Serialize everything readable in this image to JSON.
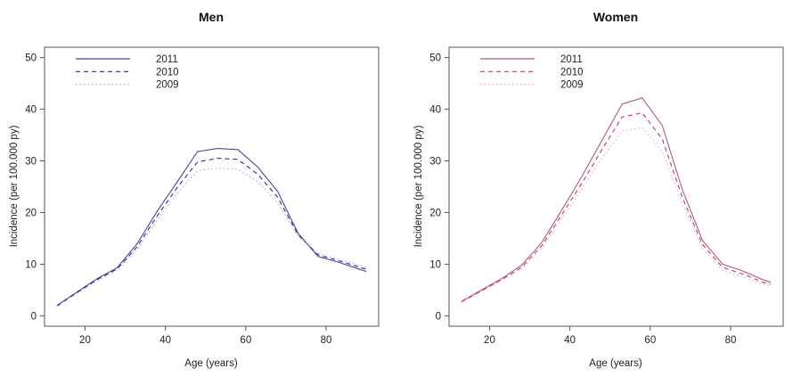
{
  "figure": {
    "background": "#ffffff"
  },
  "chart_data": [
    {
      "type": "line",
      "title": "Men",
      "xlabel": "Age (years)",
      "ylabel": "Incidence (per 100.000 py)",
      "xlim": [
        13,
        90
      ],
      "ylim": [
        0,
        50
      ],
      "x_ticks": [
        20,
        40,
        60,
        80
      ],
      "y_ticks": [
        0,
        10,
        20,
        30,
        40,
        50
      ],
      "grid": false,
      "legend_position": "top-left",
      "x": [
        13,
        18,
        23,
        28,
        33,
        38,
        43,
        48,
        53,
        58,
        63,
        68,
        73,
        78,
        83,
        88,
        90
      ],
      "series": [
        {
          "name": "2011",
          "linestyle": "solid",
          "color": "#45459d",
          "values": [
            2.0,
            4.6,
            7.2,
            9.3,
            14.0,
            20.3,
            26.0,
            31.8,
            32.4,
            32.2,
            28.8,
            24.0,
            16.0,
            11.5,
            10.4,
            9.1,
            8.6
          ]
        },
        {
          "name": "2010",
          "linestyle": "dashed",
          "color": "#2a2aa4",
          "values": [
            1.9,
            4.5,
            7.0,
            9.1,
            13.4,
            19.4,
            24.9,
            29.8,
            30.5,
            30.3,
            27.4,
            22.9,
            15.7,
            11.8,
            10.7,
            9.5,
            9.0
          ]
        },
        {
          "name": "2009",
          "linestyle": "dotted",
          "color": "#a8a8da",
          "values": [
            1.85,
            4.35,
            6.8,
            8.9,
            12.9,
            18.6,
            23.8,
            28.1,
            28.6,
            28.4,
            26.0,
            21.8,
            15.5,
            12.1,
            11.0,
            9.9,
            9.4
          ]
        }
      ]
    },
    {
      "type": "line",
      "title": "Women",
      "xlabel": "Age (years)",
      "ylabel": "Incidence (per 100.000 py)",
      "xlim": [
        13,
        90
      ],
      "ylim": [
        0,
        50
      ],
      "x_ticks": [
        20,
        40,
        60,
        80
      ],
      "y_ticks": [
        0,
        10,
        20,
        30,
        40,
        50
      ],
      "grid": false,
      "legend_position": "top-left",
      "x": [
        13,
        18,
        23,
        28,
        33,
        38,
        43,
        48,
        53,
        58,
        63,
        68,
        73,
        78,
        83,
        88,
        90
      ],
      "series": [
        {
          "name": "2011",
          "linestyle": "solid",
          "color": "#b25c7c",
          "values": [
            2.8,
            5.0,
            7.2,
            9.8,
            14.2,
            20.5,
            27.0,
            34.0,
            41.0,
            42.2,
            36.8,
            24.4,
            14.6,
            10.0,
            8.7,
            7.0,
            6.5
          ]
        },
        {
          "name": "2010",
          "linestyle": "dashed",
          "color": "#c23a62",
          "values": [
            2.7,
            4.85,
            7.0,
            9.4,
            13.6,
            19.6,
            25.7,
            32.2,
            38.5,
            39.3,
            34.2,
            22.9,
            13.8,
            9.4,
            8.1,
            6.5,
            6.1
          ]
        },
        {
          "name": "2009",
          "linestyle": "dotted",
          "color": "#eca7ba",
          "values": [
            2.6,
            4.7,
            6.8,
            9.1,
            13.1,
            18.8,
            24.6,
            30.6,
            35.8,
            36.4,
            31.8,
            21.7,
            13.1,
            8.8,
            7.6,
            6.1,
            5.6
          ]
        }
      ]
    }
  ]
}
